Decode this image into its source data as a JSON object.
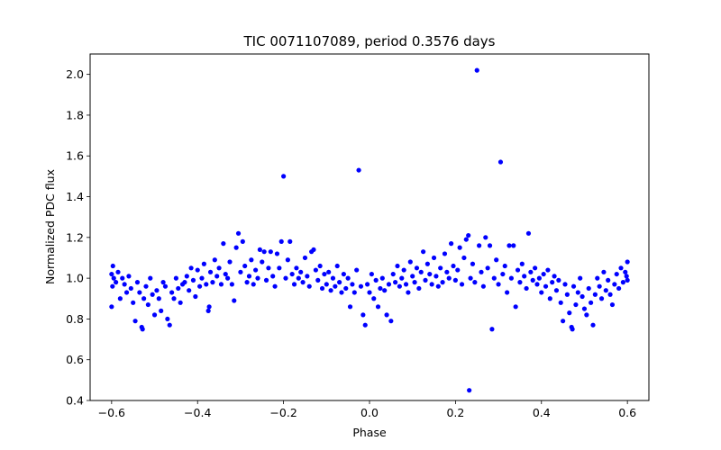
{
  "chart_data": {
    "type": "scatter",
    "title": "TIC 0071107089, period 0.3576 days",
    "xlabel": "Phase",
    "ylabel": "Normalized PDC flux",
    "xlim": [
      -0.65,
      0.65
    ],
    "ylim": [
      0.4,
      2.1
    ],
    "xticks": [
      -0.6,
      -0.4,
      -0.2,
      0.0,
      0.2,
      0.4,
      0.6
    ],
    "xtick_labels": [
      "−0.6",
      "−0.4",
      "−0.2",
      "0.0",
      "0.2",
      "0.4",
      "0.6"
    ],
    "yticks": [
      0.4,
      0.6,
      0.8,
      1.0,
      1.2,
      1.4,
      1.6,
      1.8,
      2.0
    ],
    "ytick_labels": [
      "0.4",
      "0.6",
      "0.8",
      "1.0",
      "1.2",
      "1.4",
      "1.6",
      "1.8",
      "2.0"
    ],
    "grid": false,
    "series": [
      {
        "name": "PDC flux",
        "color": "#0000ff",
        "marker": "circle",
        "points": [
          [
            -0.6,
            1.02
          ],
          [
            -0.6,
            0.86
          ],
          [
            -0.598,
            0.96
          ],
          [
            -0.597,
            1.06
          ],
          [
            -0.595,
            1.0
          ],
          [
            -0.59,
            0.98
          ],
          [
            -0.585,
            1.03
          ],
          [
            -0.58,
            0.9
          ],
          [
            -0.575,
            1.0
          ],
          [
            -0.57,
            0.97
          ],
          [
            -0.565,
            0.93
          ],
          [
            -0.56,
            1.01
          ],
          [
            -0.555,
            0.95
          ],
          [
            -0.55,
            0.88
          ],
          [
            -0.545,
            0.79
          ],
          [
            -0.54,
            0.98
          ],
          [
            -0.535,
            0.93
          ],
          [
            -0.53,
            0.76
          ],
          [
            -0.528,
            0.75
          ],
          [
            -0.525,
            0.9
          ],
          [
            -0.52,
            0.96
          ],
          [
            -0.515,
            0.87
          ],
          [
            -0.51,
            1.0
          ],
          [
            -0.505,
            0.92
          ],
          [
            -0.5,
            0.82
          ],
          [
            -0.495,
            0.94
          ],
          [
            -0.49,
            0.9
          ],
          [
            -0.485,
            0.84
          ],
          [
            -0.48,
            0.98
          ],
          [
            -0.475,
            0.96
          ],
          [
            -0.47,
            0.8
          ],
          [
            -0.465,
            0.77
          ],
          [
            -0.46,
            0.93
          ],
          [
            -0.455,
            0.9
          ],
          [
            -0.45,
            1.0
          ],
          [
            -0.445,
            0.95
          ],
          [
            -0.44,
            0.88
          ],
          [
            -0.435,
            0.97
          ],
          [
            -0.43,
            0.98
          ],
          [
            -0.425,
            1.01
          ],
          [
            -0.42,
            0.94
          ],
          [
            -0.415,
            1.05
          ],
          [
            -0.41,
            0.99
          ],
          [
            -0.405,
            0.91
          ],
          [
            -0.4,
            1.04
          ],
          [
            -0.395,
            0.96
          ],
          [
            -0.39,
            1.0
          ],
          [
            -0.385,
            1.07
          ],
          [
            -0.38,
            0.97
          ],
          [
            -0.375,
            0.84
          ],
          [
            -0.373,
            0.86
          ],
          [
            -0.37,
            1.03
          ],
          [
            -0.365,
            0.98
          ],
          [
            -0.36,
            1.09
          ],
          [
            -0.355,
            1.01
          ],
          [
            -0.35,
            1.05
          ],
          [
            -0.345,
            0.97
          ],
          [
            -0.34,
            1.17
          ],
          [
            -0.335,
            1.02
          ],
          [
            -0.33,
            1.0
          ],
          [
            -0.325,
            1.08
          ],
          [
            -0.32,
            0.97
          ],
          [
            -0.315,
            0.89
          ],
          [
            -0.31,
            1.15
          ],
          [
            -0.305,
            1.22
          ],
          [
            -0.3,
            1.03
          ],
          [
            -0.295,
            1.18
          ],
          [
            -0.29,
            1.06
          ],
          [
            -0.285,
            0.98
          ],
          [
            -0.28,
            1.01
          ],
          [
            -0.275,
            1.09
          ],
          [
            -0.27,
            0.97
          ],
          [
            -0.265,
            1.04
          ],
          [
            -0.26,
            1.0
          ],
          [
            -0.255,
            1.14
          ],
          [
            -0.25,
            1.08
          ],
          [
            -0.245,
            1.13
          ],
          [
            -0.24,
            0.99
          ],
          [
            -0.235,
            1.05
          ],
          [
            -0.23,
            1.13
          ],
          [
            -0.225,
            1.01
          ],
          [
            -0.22,
            0.96
          ],
          [
            -0.215,
            1.12
          ],
          [
            -0.21,
            1.05
          ],
          [
            -0.205,
            1.18
          ],
          [
            -0.2,
            1.5
          ],
          [
            -0.195,
            1.0
          ],
          [
            -0.19,
            1.09
          ],
          [
            -0.185,
            1.18
          ],
          [
            -0.18,
            1.02
          ],
          [
            -0.175,
            0.97
          ],
          [
            -0.17,
            1.05
          ],
          [
            -0.165,
            1.0
          ],
          [
            -0.16,
            1.03
          ],
          [
            -0.155,
            0.98
          ],
          [
            -0.15,
            1.1
          ],
          [
            -0.145,
            1.01
          ],
          [
            -0.14,
            0.96
          ],
          [
            -0.135,
            1.13
          ],
          [
            -0.13,
            1.14
          ],
          [
            -0.125,
            1.04
          ],
          [
            -0.12,
            0.99
          ],
          [
            -0.115,
            1.06
          ],
          [
            -0.11,
            0.95
          ],
          [
            -0.105,
            1.02
          ],
          [
            -0.1,
            0.97
          ],
          [
            -0.095,
            1.03
          ],
          [
            -0.09,
            0.94
          ],
          [
            -0.085,
            1.0
          ],
          [
            -0.08,
            0.96
          ],
          [
            -0.075,
            1.06
          ],
          [
            -0.07,
            0.98
          ],
          [
            -0.065,
            0.93
          ],
          [
            -0.06,
            1.02
          ],
          [
            -0.055,
            0.95
          ],
          [
            -0.05,
            1.0
          ],
          [
            -0.045,
            0.86
          ],
          [
            -0.04,
            0.97
          ],
          [
            -0.035,
            0.93
          ],
          [
            -0.03,
            1.04
          ],
          [
            -0.025,
            1.53
          ],
          [
            -0.02,
            0.96
          ],
          [
            -0.015,
            0.82
          ],
          [
            -0.01,
            0.77
          ],
          [
            -0.005,
            0.97
          ],
          [
            0.0,
            0.93
          ],
          [
            0.005,
            1.02
          ],
          [
            0.01,
            0.9
          ],
          [
            0.015,
            0.99
          ],
          [
            0.02,
            0.86
          ],
          [
            0.025,
            0.95
          ],
          [
            0.03,
            1.0
          ],
          [
            0.035,
            0.94
          ],
          [
            0.04,
            0.82
          ],
          [
            0.045,
            0.97
          ],
          [
            0.05,
            0.79
          ],
          [
            0.055,
            1.02
          ],
          [
            0.06,
            0.98
          ],
          [
            0.065,
            1.06
          ],
          [
            0.07,
            0.96
          ],
          [
            0.075,
            1.0
          ],
          [
            0.08,
            1.04
          ],
          [
            0.085,
            0.97
          ],
          [
            0.09,
            0.93
          ],
          [
            0.095,
            1.08
          ],
          [
            0.1,
            1.01
          ],
          [
            0.105,
            0.98
          ],
          [
            0.11,
            1.05
          ],
          [
            0.115,
            0.95
          ],
          [
            0.12,
            1.03
          ],
          [
            0.125,
            1.13
          ],
          [
            0.13,
            0.99
          ],
          [
            0.135,
            1.07
          ],
          [
            0.14,
            1.02
          ],
          [
            0.145,
            0.97
          ],
          [
            0.15,
            1.1
          ],
          [
            0.155,
            1.01
          ],
          [
            0.16,
            0.96
          ],
          [
            0.165,
            1.05
          ],
          [
            0.17,
            0.98
          ],
          [
            0.175,
            1.12
          ],
          [
            0.18,
            1.03
          ],
          [
            0.185,
            1.0
          ],
          [
            0.19,
            1.17
          ],
          [
            0.195,
            1.06
          ],
          [
            0.2,
            0.99
          ],
          [
            0.205,
            1.04
          ],
          [
            0.21,
            1.15
          ],
          [
            0.215,
            0.97
          ],
          [
            0.22,
            1.1
          ],
          [
            0.225,
            1.19
          ],
          [
            0.23,
            1.21
          ],
          [
            0.232,
            0.45
          ],
          [
            0.235,
            1.0
          ],
          [
            0.24,
            1.07
          ],
          [
            0.245,
            0.98
          ],
          [
            0.25,
            2.02
          ],
          [
            0.255,
            1.16
          ],
          [
            0.26,
            1.03
          ],
          [
            0.265,
            0.96
          ],
          [
            0.27,
            1.2
          ],
          [
            0.275,
            1.05
          ],
          [
            0.28,
            1.16
          ],
          [
            0.285,
            0.75
          ],
          [
            0.29,
            1.0
          ],
          [
            0.295,
            1.09
          ],
          [
            0.3,
            0.97
          ],
          [
            0.305,
            1.57
          ],
          [
            0.31,
            1.02
          ],
          [
            0.315,
            1.06
          ],
          [
            0.32,
            0.93
          ],
          [
            0.325,
            1.16
          ],
          [
            0.33,
            1.0
          ],
          [
            0.335,
            1.16
          ],
          [
            0.34,
            0.86
          ],
          [
            0.345,
            1.04
          ],
          [
            0.35,
            0.98
          ],
          [
            0.355,
            1.07
          ],
          [
            0.36,
            1.01
          ],
          [
            0.365,
            0.95
          ],
          [
            0.37,
            1.22
          ],
          [
            0.375,
            1.03
          ],
          [
            0.38,
            0.99
          ],
          [
            0.385,
            1.05
          ],
          [
            0.39,
            0.97
          ],
          [
            0.395,
            1.0
          ],
          [
            0.4,
            0.93
          ],
          [
            0.405,
            1.02
          ],
          [
            0.41,
            0.96
          ],
          [
            0.415,
            1.04
          ],
          [
            0.42,
            0.9
          ],
          [
            0.425,
            0.98
          ],
          [
            0.43,
            1.01
          ],
          [
            0.435,
            0.94
          ],
          [
            0.44,
            0.99
          ],
          [
            0.445,
            0.88
          ],
          [
            0.45,
            0.79
          ],
          [
            0.455,
            0.97
          ],
          [
            0.46,
            0.92
          ],
          [
            0.465,
            0.83
          ],
          [
            0.47,
            0.76
          ],
          [
            0.472,
            0.75
          ],
          [
            0.475,
            0.96
          ],
          [
            0.48,
            0.87
          ],
          [
            0.485,
            0.93
          ],
          [
            0.49,
            1.0
          ],
          [
            0.495,
            0.91
          ],
          [
            0.5,
            0.85
          ],
          [
            0.505,
            0.82
          ],
          [
            0.51,
            0.95
          ],
          [
            0.515,
            0.88
          ],
          [
            0.52,
            0.77
          ],
          [
            0.525,
            0.92
          ],
          [
            0.53,
            1.0
          ],
          [
            0.535,
            0.96
          ],
          [
            0.54,
            0.9
          ],
          [
            0.545,
            1.03
          ],
          [
            0.55,
            0.94
          ],
          [
            0.555,
            0.99
          ],
          [
            0.56,
            0.92
          ],
          [
            0.565,
            0.87
          ],
          [
            0.57,
            0.97
          ],
          [
            0.575,
            1.02
          ],
          [
            0.58,
            0.95
          ],
          [
            0.585,
            1.05
          ],
          [
            0.59,
            0.98
          ],
          [
            0.595,
            1.03
          ],
          [
            0.6,
            1.08
          ],
          [
            0.6,
            0.99
          ],
          [
            0.598,
            1.01
          ]
        ]
      }
    ]
  }
}
